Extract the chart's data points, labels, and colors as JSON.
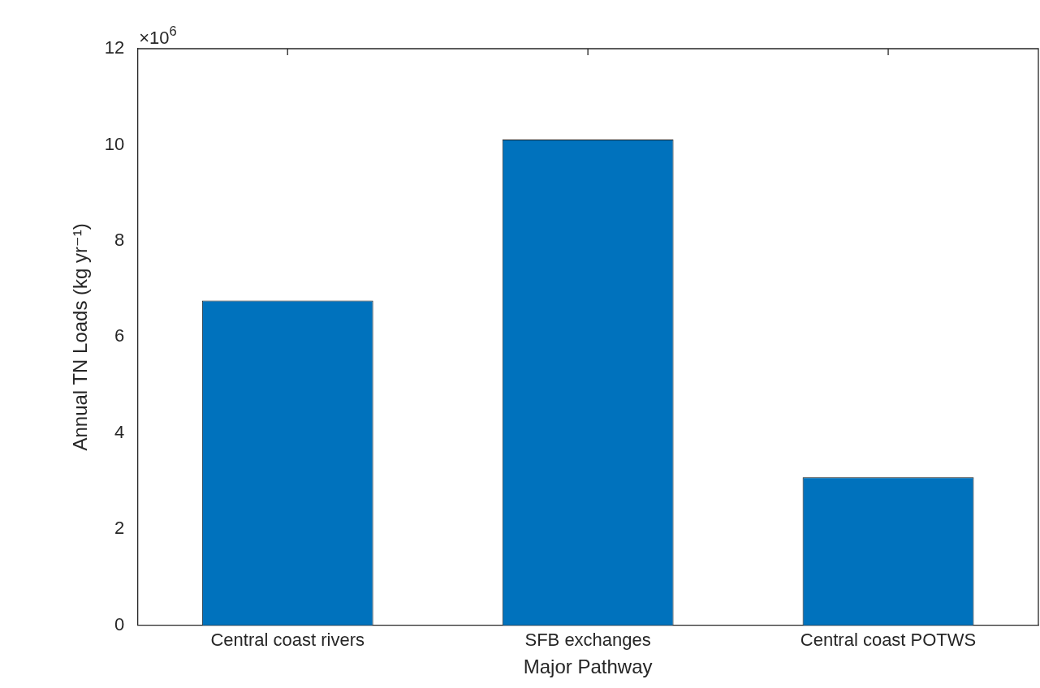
{
  "chart_data": {
    "type": "bar",
    "categories": [
      "Central coast rivers",
      "SFB exchanges",
      "Central coast POTWS"
    ],
    "values": [
      6.76,
      10.11,
      3.08
    ],
    "color": "#0072bd",
    "xlabel": "Major Pathway",
    "ylabel": "Annual TN Loads (kg yr⁻¹)",
    "ylim": [
      0,
      12
    ],
    "yticks": [
      0,
      2,
      4,
      6,
      8,
      10,
      12
    ],
    "annotations": [
      "×10$^{6}$"
    ],
    "grid": false,
    "legend": false
  }
}
